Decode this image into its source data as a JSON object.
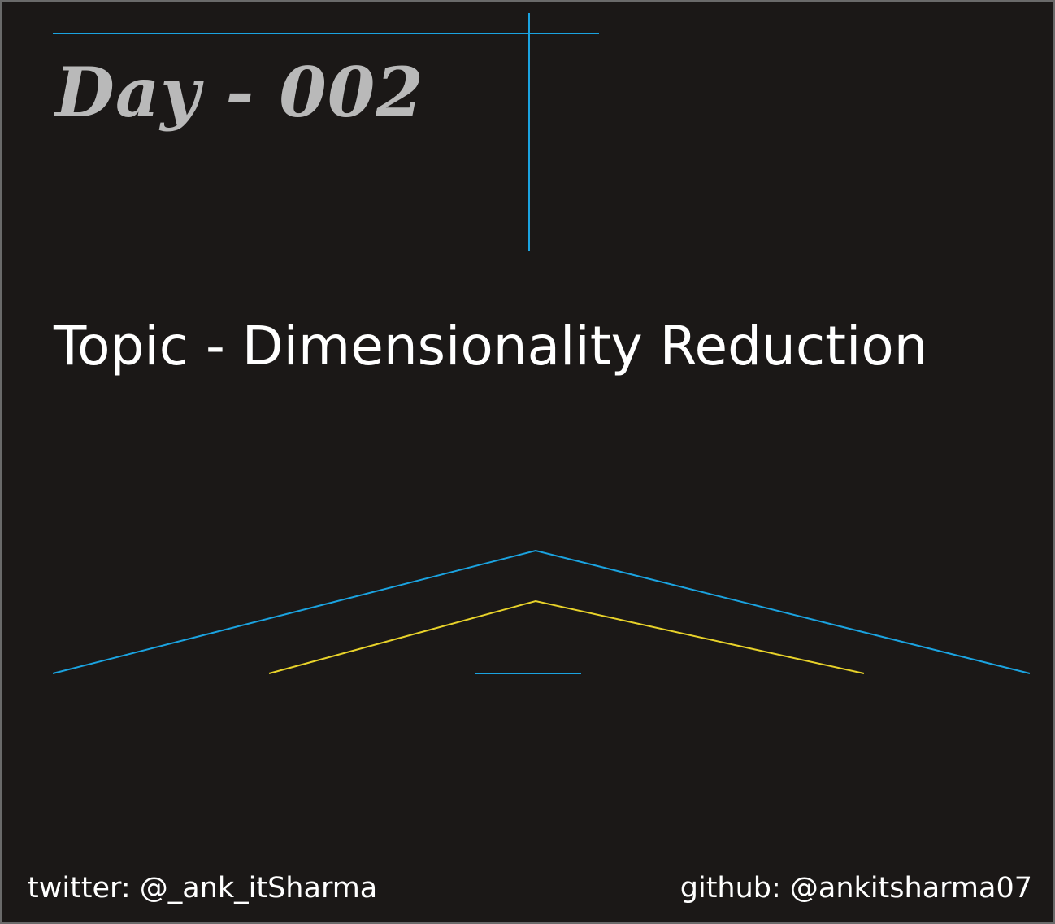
{
  "slide": {
    "title": "Day - 002",
    "topic": "Topic - Dimensionality Reduction"
  },
  "footer": {
    "twitter": "twitter: @_ank_itSharma",
    "github": "github: @ankitsharma07"
  },
  "colors": {
    "background": "#1b1817",
    "accent_blue": "#1ba3e0",
    "accent_yellow": "#e8d22a",
    "title_gray": "#b9b9b9",
    "text_white": "#ffffff"
  }
}
